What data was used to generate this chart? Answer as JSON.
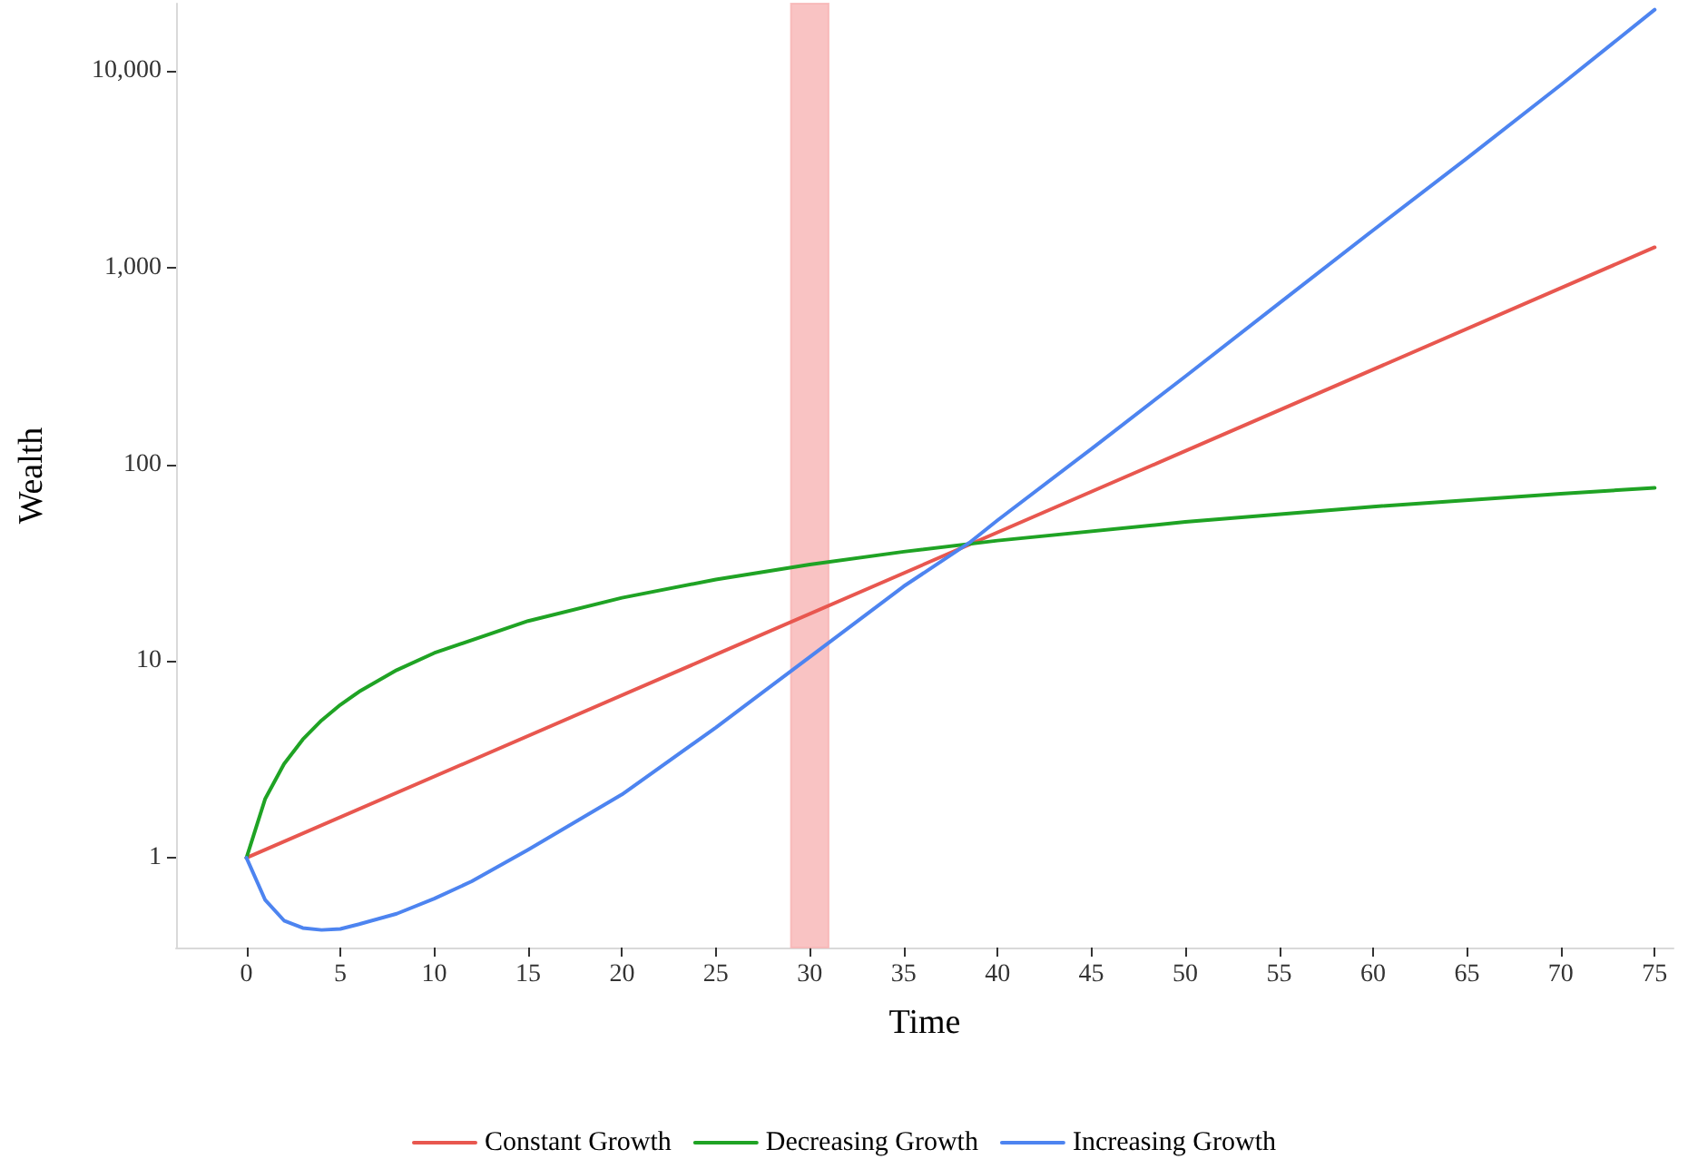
{
  "chart_data": {
    "type": "line",
    "xlabel": "Time",
    "ylabel": "Wealth",
    "log": "y",
    "grid": false,
    "legend": "bottom",
    "marker": "none",
    "line_style": "solid",
    "xlim": [
      -3.75,
      76
    ],
    "xticks": [
      0,
      5,
      10,
      15,
      20,
      25,
      30,
      35,
      40,
      45,
      50,
      55,
      60,
      65,
      70,
      75
    ],
    "ylim": [
      0.35,
      22000
    ],
    "yticks": [
      {
        "value": 1,
        "label": "1"
      },
      {
        "value": 10,
        "label": "10"
      },
      {
        "value": 100,
        "label": "100"
      },
      {
        "value": 1000,
        "label": "1,000"
      },
      {
        "value": 10000,
        "label": "10,000"
      }
    ],
    "bands": [
      {
        "axis": "x",
        "from": 29,
        "to": 31,
        "color": "#f8b4b4"
      }
    ],
    "series": [
      {
        "name": "Constant Growth",
        "color": "#e8574f",
        "x": [
          0,
          25,
          50,
          75
        ],
        "values": [
          1,
          10.8,
          117,
          1270
        ]
      },
      {
        "name": "Decreasing Growth",
        "color": "#1fa324",
        "x": [
          0,
          1,
          2,
          3,
          4,
          5,
          6,
          8,
          10,
          15,
          20,
          25,
          30,
          35,
          40,
          50,
          60,
          70,
          75
        ],
        "values": [
          1,
          2,
          3,
          4,
          5,
          6,
          7,
          9,
          11,
          16,
          21,
          26,
          31,
          36,
          41,
          51,
          61,
          71,
          76
        ]
      },
      {
        "name": "Increasing Growth",
        "color": "#4d84f0",
        "x": [
          0,
          1,
          2,
          3,
          4,
          5,
          6,
          8,
          10,
          12,
          15,
          20,
          25,
          30,
          35,
          38.5,
          40,
          45,
          50,
          55,
          60,
          65,
          70,
          75
        ],
        "values": [
          1,
          0.61,
          0.48,
          0.44,
          0.43,
          0.435,
          0.46,
          0.52,
          0.62,
          0.76,
          1.1,
          2.1,
          4.6,
          10.5,
          24,
          40,
          52,
          120,
          280,
          660,
          1550,
          3600,
          8500,
          20500
        ]
      }
    ]
  }
}
